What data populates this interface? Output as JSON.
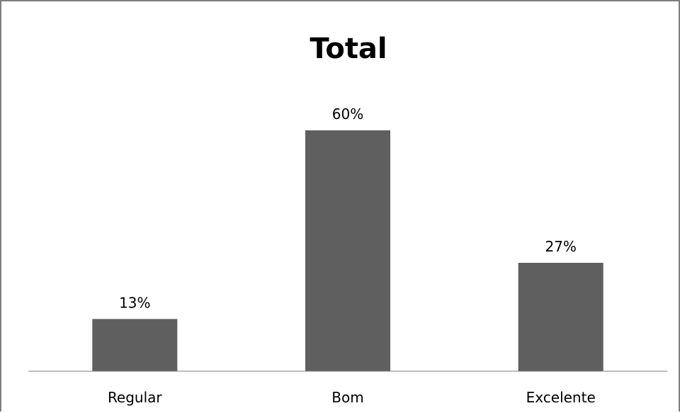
{
  "colors": {
    "bar": "#5f5f5f",
    "axis": "#7f7f7f"
  },
  "chart_data": {
    "type": "bar",
    "title": "Total",
    "categories": [
      "Regular",
      "Bom",
      "Excelente"
    ],
    "values": [
      13,
      60,
      27
    ],
    "data_labels": [
      "13%",
      "60%",
      "27%"
    ],
    "value_unit": "%",
    "ylim": [
      0,
      60
    ],
    "grid": false,
    "legend": "none",
    "xlabel": "",
    "ylabel": ""
  }
}
